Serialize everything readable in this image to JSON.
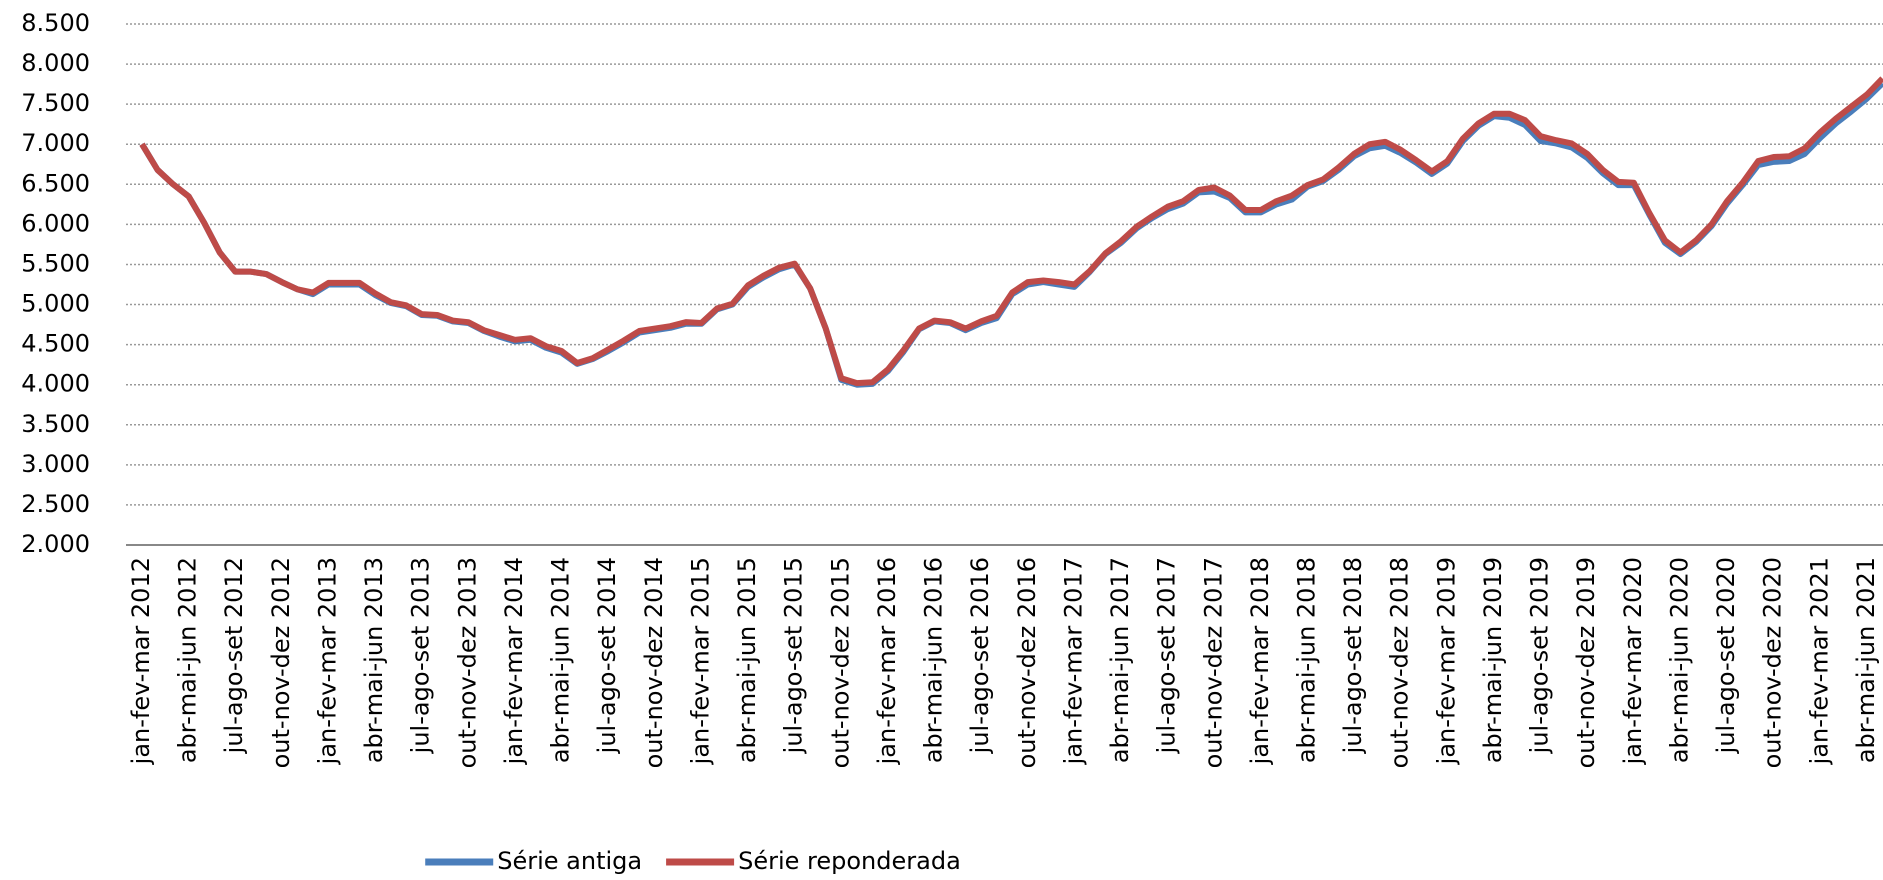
{
  "chart_data": {
    "type": "line",
    "categories": [
      "jan-fev-mar 2012",
      null,
      null,
      "abr-mai-jun 2012",
      null,
      null,
      "jul-ago-set 2012",
      null,
      null,
      "out-nov-dez 2012",
      null,
      null,
      "jan-fev-mar 2013",
      null,
      null,
      "abr-mai-jun 2013",
      null,
      null,
      "jul-ago-set 2013",
      null,
      null,
      "out-nov-dez 2013",
      null,
      null,
      "jan-fev-mar 2014",
      null,
      null,
      "abr-mai-jun 2014",
      null,
      null,
      "jul-ago-set 2014",
      null,
      null,
      "out-nov-dez 2014",
      null,
      null,
      "jan-fev-mar 2015",
      null,
      null,
      "abr-mai-jun 2015",
      null,
      null,
      "jul-ago-set 2015",
      null,
      null,
      "out-nov-dez 2015",
      null,
      null,
      "jan-fev-mar 2016",
      null,
      null,
      "abr-mai-jun 2016",
      null,
      null,
      "jul-ago-set 2016",
      null,
      null,
      "out-nov-dez 2016",
      null,
      null,
      "jan-fev-mar 2017",
      null,
      null,
      "abr-mai-jun 2017",
      null,
      null,
      "jul-ago-set 2017",
      null,
      null,
      "out-nov-dez 2017",
      null,
      null,
      "jan-fev-mar 2018",
      null,
      null,
      "abr-mai-jun 2018",
      null,
      null,
      "jul-ago-set 2018",
      null,
      null,
      "out-nov-dez 2018",
      null,
      null,
      "jan-fev-mar 2019",
      null,
      null,
      "abr-mai-jun 2019",
      null,
      null,
      "jul-ago-set 2019",
      null,
      null,
      "out-nov-dez 2019",
      null,
      null,
      "jan-fev-mar 2020",
      null,
      null,
      "abr-mai-jun 2020",
      null,
      null,
      "jul-ago-set 2020",
      null,
      null,
      "out-nov-dez 2020",
      null,
      null,
      "jan-fev-mar 2021",
      null,
      null,
      "abr-mai-jun 2021",
      null
    ],
    "series": [
      {
        "name": "Série antiga",
        "color": "#4a7ebb",
        "values": [
          7000,
          6680,
          6500,
          6350,
          6020,
          5650,
          5410,
          5410,
          5380,
          5280,
          5190,
          5130,
          5250,
          5250,
          5250,
          5120,
          5020,
          4980,
          4870,
          4860,
          4790,
          4770,
          4670,
          4600,
          4540,
          4560,
          4460,
          4400,
          4260,
          4320,
          4420,
          4530,
          4650,
          4680,
          4710,
          4760,
          4760,
          4940,
          5000,
          5220,
          5340,
          5440,
          5500,
          5200,
          4700,
          4060,
          4000,
          4010,
          4170,
          4410,
          4690,
          4790,
          4770,
          4680,
          4770,
          4830,
          5130,
          5250,
          5280,
          5250,
          5220,
          5410,
          5630,
          5770,
          5950,
          6080,
          6190,
          6260,
          6400,
          6410,
          6330,
          6150,
          6150,
          6250,
          6310,
          6470,
          6540,
          6680,
          6850,
          6950,
          6980,
          6890,
          6770,
          6630,
          6760,
          7040,
          7230,
          7350,
          7330,
          7240,
          7040,
          7010,
          6960,
          6830,
          6640,
          6490,
          6490,
          6120,
          5770,
          5630,
          5780,
          5980,
          6260,
          6490,
          6740,
          6780,
          6790,
          6880,
          7080,
          7260,
          7410,
          7570,
          7760
        ]
      },
      {
        "name": "Série reponderada",
        "color": "#be4b48",
        "values": [
          7000,
          6680,
          6500,
          6350,
          6020,
          5650,
          5410,
          5410,
          5380,
          5280,
          5190,
          5150,
          5270,
          5270,
          5270,
          5140,
          5030,
          4990,
          4880,
          4870,
          4800,
          4780,
          4680,
          4620,
          4560,
          4580,
          4480,
          4420,
          4270,
          4330,
          4440,
          4550,
          4670,
          4700,
          4730,
          4780,
          4770,
          4950,
          5010,
          5240,
          5360,
          5460,
          5510,
          5200,
          4700,
          4080,
          4020,
          4030,
          4190,
          4430,
          4700,
          4800,
          4780,
          4700,
          4790,
          4860,
          5150,
          5280,
          5300,
          5280,
          5250,
          5420,
          5640,
          5790,
          5970,
          6100,
          6220,
          6290,
          6430,
          6460,
          6360,
          6180,
          6180,
          6290,
          6360,
          6490,
          6560,
          6710,
          6880,
          7000,
          7030,
          6930,
          6800,
          6660,
          6790,
          7070,
          7260,
          7380,
          7380,
          7300,
          7100,
          7050,
          7010,
          6880,
          6680,
          6530,
          6520,
          6140,
          5800,
          5650,
          5800,
          6000,
          6290,
          6520,
          6790,
          6840,
          6850,
          6950,
          7150,
          7320,
          7470,
          7620,
          7820
        ]
      }
    ],
    "ylim": [
      2000,
      8500
    ],
    "yticks": [
      {
        "value": 2000,
        "label": "2.000"
      },
      {
        "value": 2500,
        "label": "2.500"
      },
      {
        "value": 3000,
        "label": "3.000"
      },
      {
        "value": 3500,
        "label": "3.500"
      },
      {
        "value": 4000,
        "label": "4.000"
      },
      {
        "value": 4500,
        "label": "4.500"
      },
      {
        "value": 5000,
        "label": "5.000"
      },
      {
        "value": 5500,
        "label": "5.500"
      },
      {
        "value": 6000,
        "label": "6.000"
      },
      {
        "value": 6500,
        "label": "6.500"
      },
      {
        "value": 7000,
        "label": "7.000"
      },
      {
        "value": 7500,
        "label": "7.500"
      },
      {
        "value": 8000,
        "label": "8.000"
      },
      {
        "value": 8500,
        "label": "8.500"
      }
    ],
    "grid": true,
    "legend": "bottom"
  }
}
